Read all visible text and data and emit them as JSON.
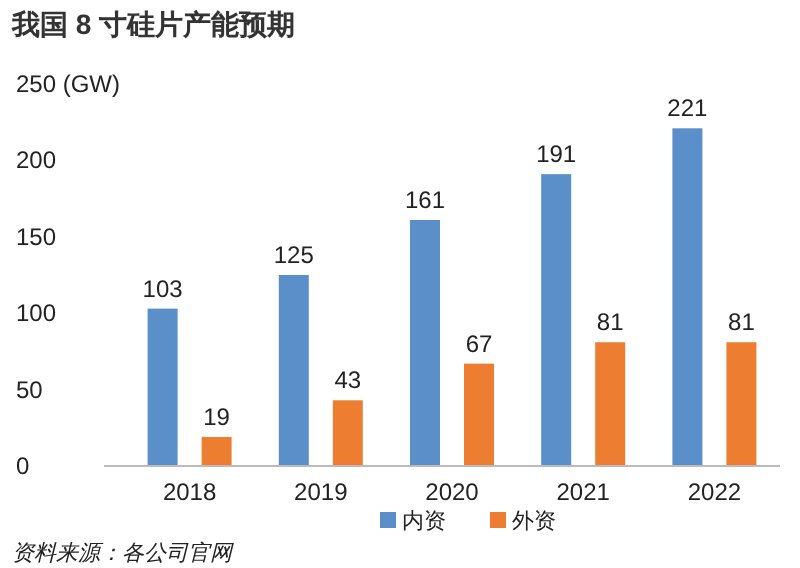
{
  "chart_data": {
    "type": "bar",
    "title": "我国 8 寸硅片产能预期",
    "categories": [
      "2018",
      "2019",
      "2020",
      "2021",
      "2022"
    ],
    "series": [
      {
        "name": "内资",
        "color": "#5b8fc9",
        "values": [
          103,
          125,
          161,
          191,
          221
        ]
      },
      {
        "name": "外资",
        "color": "#ed7d31",
        "values": [
          19,
          43,
          67,
          81,
          81
        ]
      }
    ],
    "ylim": [
      0,
      250
    ],
    "yticks": [
      0,
      50,
      100,
      150,
      200,
      {
        "value": 250,
        "label": "250 (GW)"
      }
    ],
    "data_labels": true,
    "legend": "bottom",
    "grid": false,
    "annotations": [
      "资料来源：各公司官网"
    ]
  }
}
